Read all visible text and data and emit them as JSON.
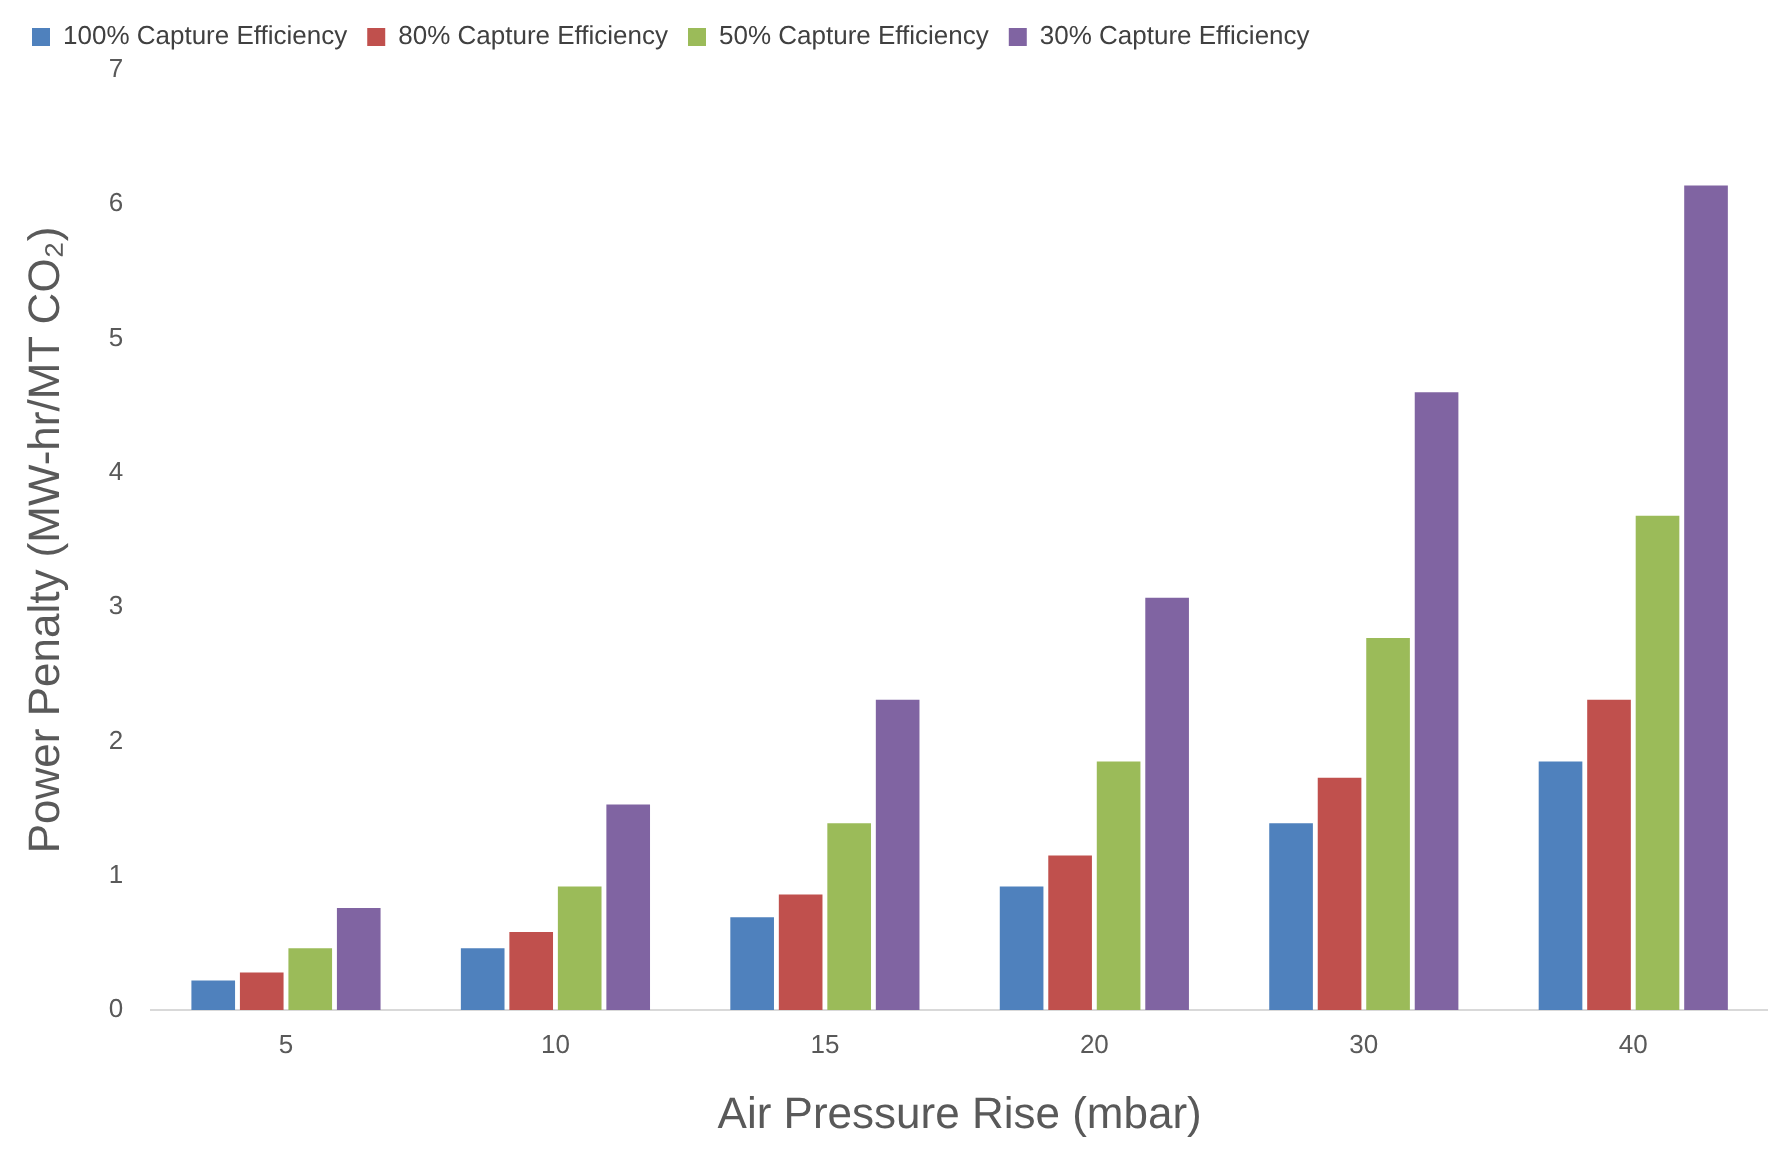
{
  "chart_data": {
    "type": "bar",
    "xlabel": "Air Pressure Rise (mbar)",
    "ylabel": "Power Penalty (MW-hr/MT CO₂)",
    "categories": [
      "5",
      "10",
      "15",
      "20",
      "30",
      "40"
    ],
    "series": [
      {
        "name": "100% Capture Efficiency",
        "color": "#4f81bd",
        "values": [
          0.22,
          0.46,
          0.69,
          0.92,
          1.39,
          1.85
        ]
      },
      {
        "name": "80% Capture Efficiency",
        "color": "#c0504d",
        "values": [
          0.28,
          0.58,
          0.86,
          1.15,
          1.73,
          2.31
        ]
      },
      {
        "name": "50% Capture Efficiency",
        "color": "#9bbb59",
        "values": [
          0.46,
          0.92,
          1.39,
          1.85,
          2.77,
          3.68
        ]
      },
      {
        "name": "30% Capture Efficiency",
        "color": "#8064a2",
        "values": [
          0.76,
          1.53,
          2.31,
          3.07,
          4.6,
          6.14
        ]
      }
    ],
    "ylim": [
      0,
      7
    ],
    "yticks": [
      0,
      1,
      2,
      3,
      4,
      5,
      6,
      7
    ],
    "grid": false,
    "legend": "top left"
  }
}
